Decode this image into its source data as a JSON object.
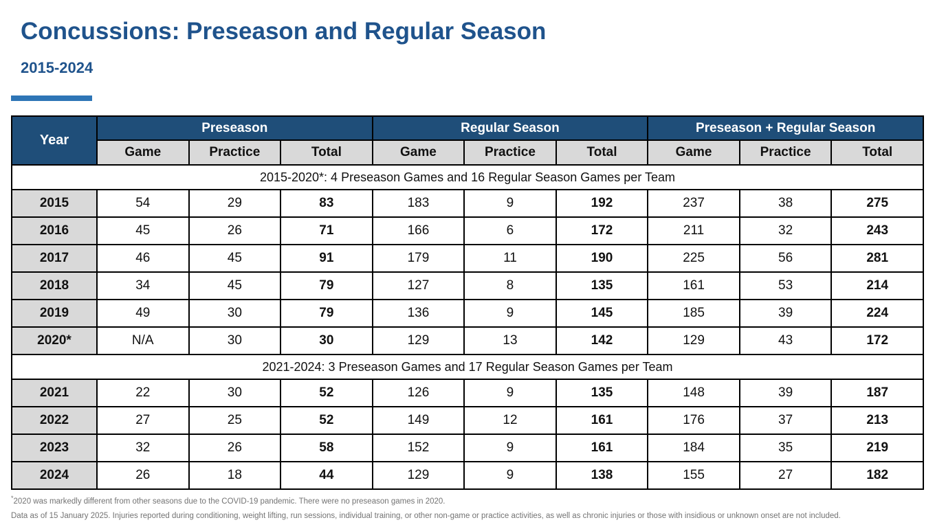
{
  "title": "Concussions: Preseason and Regular Season",
  "subtitle": "2015-2024",
  "colors": {
    "title_blue": "#1F538C",
    "header_blue": "#1F4E79",
    "accent_bar_blue": "#2E75B6",
    "subheader_gray": "#D9D9D9",
    "border_black": "#000000",
    "footnote_gray": "#737373"
  },
  "table": {
    "year_header": "Year",
    "groups": [
      "Preseason",
      "Regular Season",
      "Preseason + Regular Season"
    ],
    "sub_headers": [
      "Game",
      "Practice",
      "Total"
    ],
    "sections": [
      {
        "note": "2015-2020*: 4 Preseason Games and 16 Regular Season Games per Team",
        "rows": [
          {
            "year": "2015",
            "values": [
              "54",
              "29",
              "83",
              "183",
              "9",
              "192",
              "237",
              "38",
              "275"
            ]
          },
          {
            "year": "2016",
            "values": [
              "45",
              "26",
              "71",
              "166",
              "6",
              "172",
              "211",
              "32",
              "243"
            ]
          },
          {
            "year": "2017",
            "values": [
              "46",
              "45",
              "91",
              "179",
              "11",
              "190",
              "225",
              "56",
              "281"
            ]
          },
          {
            "year": "2018",
            "values": [
              "34",
              "45",
              "79",
              "127",
              "8",
              "135",
              "161",
              "53",
              "214"
            ]
          },
          {
            "year": "2019",
            "values": [
              "49",
              "30",
              "79",
              "136",
              "9",
              "145",
              "185",
              "39",
              "224"
            ]
          },
          {
            "year": "2020*",
            "values": [
              "N/A",
              "30",
              "30",
              "129",
              "13",
              "142",
              "129",
              "43",
              "172"
            ]
          }
        ]
      },
      {
        "note": "2021-2024: 3 Preseason Games and 17 Regular Season Games per Team",
        "rows": [
          {
            "year": "2021",
            "values": [
              "22",
              "30",
              "52",
              "126",
              "9",
              "135",
              "148",
              "39",
              "187"
            ]
          },
          {
            "year": "2022",
            "values": [
              "27",
              "25",
              "52",
              "149",
              "12",
              "161",
              "176",
              "37",
              "213"
            ]
          },
          {
            "year": "2023",
            "values": [
              "32",
              "26",
              "58",
              "152",
              "9",
              "161",
              "184",
              "35",
              "219"
            ]
          },
          {
            "year": "2024",
            "values": [
              "26",
              "18",
              "44",
              "129",
              "9",
              "138",
              "155",
              "27",
              "182"
            ]
          }
        ]
      }
    ]
  },
  "footnotes": [
    {
      "marker": "*",
      "text": "2020 was markedly different from other seasons due to the COVID-19 pandemic. There were no preseason games in 2020."
    },
    {
      "marker": "",
      "text": "Data as of 15 January 2025. Injuries reported during conditioning, weight lifting, run sessions, individual training, or other non-game or practice activities, as well as chronic injuries or those with insidious or unknown onset are not included."
    }
  ]
}
